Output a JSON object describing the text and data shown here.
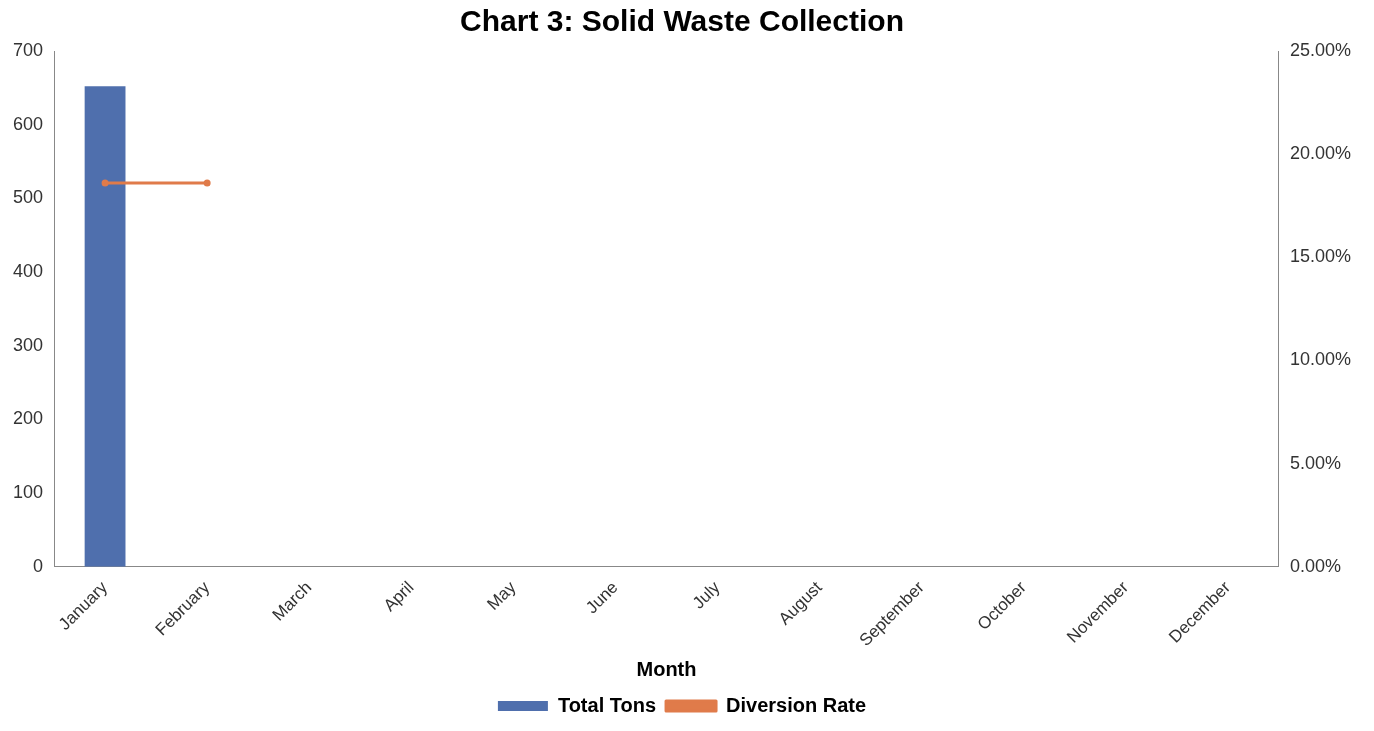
{
  "chart_data": {
    "type": "bar",
    "title": "Chart 3: Solid Waste Collection",
    "xlabel": "Month",
    "categories": [
      "January",
      "February",
      "March",
      "April",
      "May",
      "June",
      "July",
      "August",
      "September",
      "October",
      "November",
      "December"
    ],
    "series": [
      {
        "name": "Total Tons",
        "color": "#4f6fad",
        "values": [
          652,
          null,
          null,
          null,
          null,
          null,
          null,
          null,
          null,
          null,
          null,
          null
        ]
      },
      {
        "name": "Diversion Rate",
        "type": "line",
        "axis": "y2",
        "color": "#e07b4a",
        "values": [
          18.6,
          18.6,
          null,
          null,
          null,
          null,
          null,
          null,
          null,
          null,
          null,
          null
        ]
      }
    ],
    "ylim": [
      0,
      700
    ],
    "yticks": [
      0,
      100,
      200,
      300,
      400,
      500,
      600,
      700
    ],
    "y2lim": [
      0,
      25
    ],
    "y2ticks": [
      {
        "value": 0,
        "label": "0.00%"
      },
      {
        "value": 5,
        "label": "5.00%"
      },
      {
        "value": 10,
        "label": "10.00%"
      },
      {
        "value": 15,
        "label": "15.00%"
      },
      {
        "value": 20,
        "label": "20.00%"
      },
      {
        "value": 25,
        "label": "25.00%"
      }
    ],
    "grid": false,
    "legend": "bottom",
    "marker": "circle",
    "line_style": "solid"
  }
}
